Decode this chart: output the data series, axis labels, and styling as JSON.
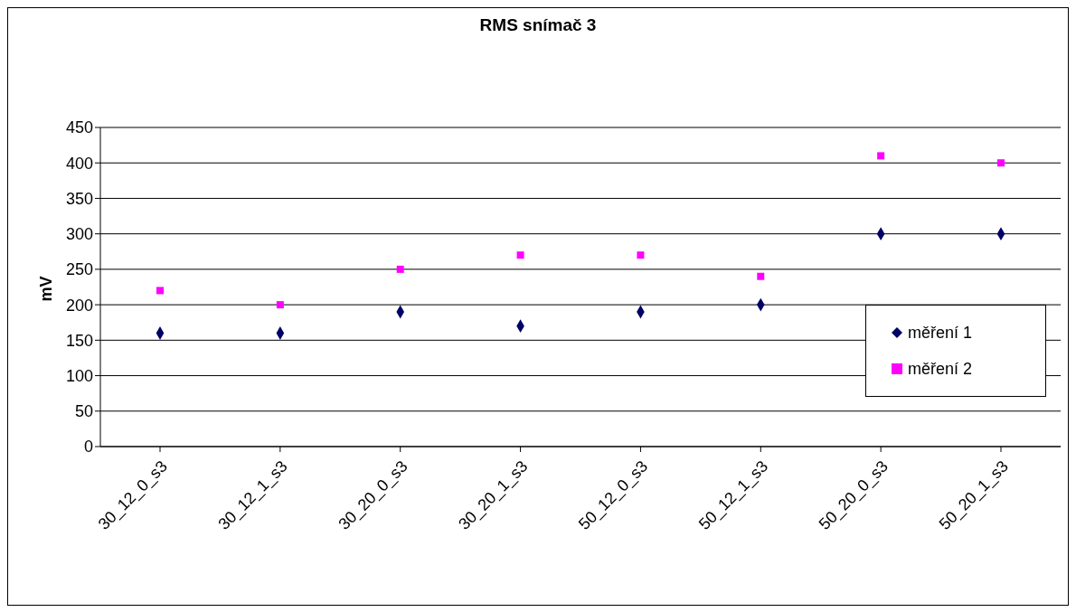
{
  "chart_data": {
    "type": "scatter",
    "title": "RMS snímač 3",
    "ylabel": "mV",
    "categories": [
      "30_12_0_s3",
      "30_12_1_s3",
      "30_20_0_s3",
      "30_20_1_s3",
      "50_12_0_s3",
      "50_12_1_s3",
      "50_20_0_s3",
      "50_20_1_s3"
    ],
    "series": [
      {
        "name": "měření 1",
        "color": "#000066",
        "marker": "diamond",
        "values": [
          160,
          160,
          190,
          170,
          190,
          200,
          300,
          300
        ]
      },
      {
        "name": "měření 2",
        "color": "#ff00ff",
        "marker": "square",
        "values": [
          220,
          200,
          250,
          270,
          270,
          240,
          410,
          400
        ]
      }
    ],
    "ylim": [
      0,
      450
    ],
    "yticks": [
      0,
      50,
      100,
      150,
      200,
      250,
      300,
      350,
      400,
      450
    ],
    "grid": "y",
    "legend": "right"
  }
}
